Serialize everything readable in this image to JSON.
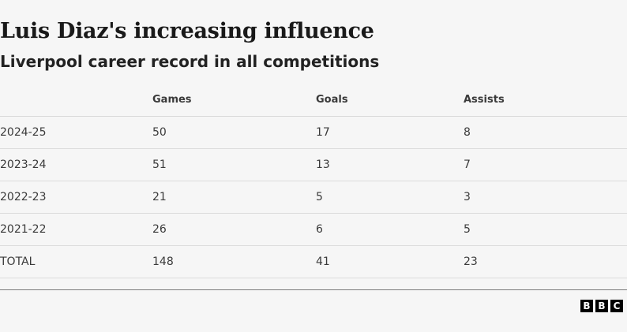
{
  "chart_data": {
    "type": "table",
    "title": "Luis Diaz's increasing influence",
    "subtitle": "Liverpool career record in all competitions",
    "columns": [
      "",
      "Games",
      "Goals",
      "Assists"
    ],
    "rows": [
      {
        "season": "2024-25",
        "games": "50",
        "goals": "17",
        "assists": "8"
      },
      {
        "season": "2023-24",
        "games": "51",
        "goals": "13",
        "assists": "7"
      },
      {
        "season": "2022-23",
        "games": "21",
        "goals": "5",
        "assists": "3"
      },
      {
        "season": "2021-22",
        "games": "26",
        "goals": "6",
        "assists": "5"
      },
      {
        "season": "TOTAL",
        "games": "148",
        "goals": "41",
        "assists": "23"
      }
    ]
  },
  "footer": {
    "logo_letters": [
      "B",
      "B",
      "C"
    ]
  }
}
